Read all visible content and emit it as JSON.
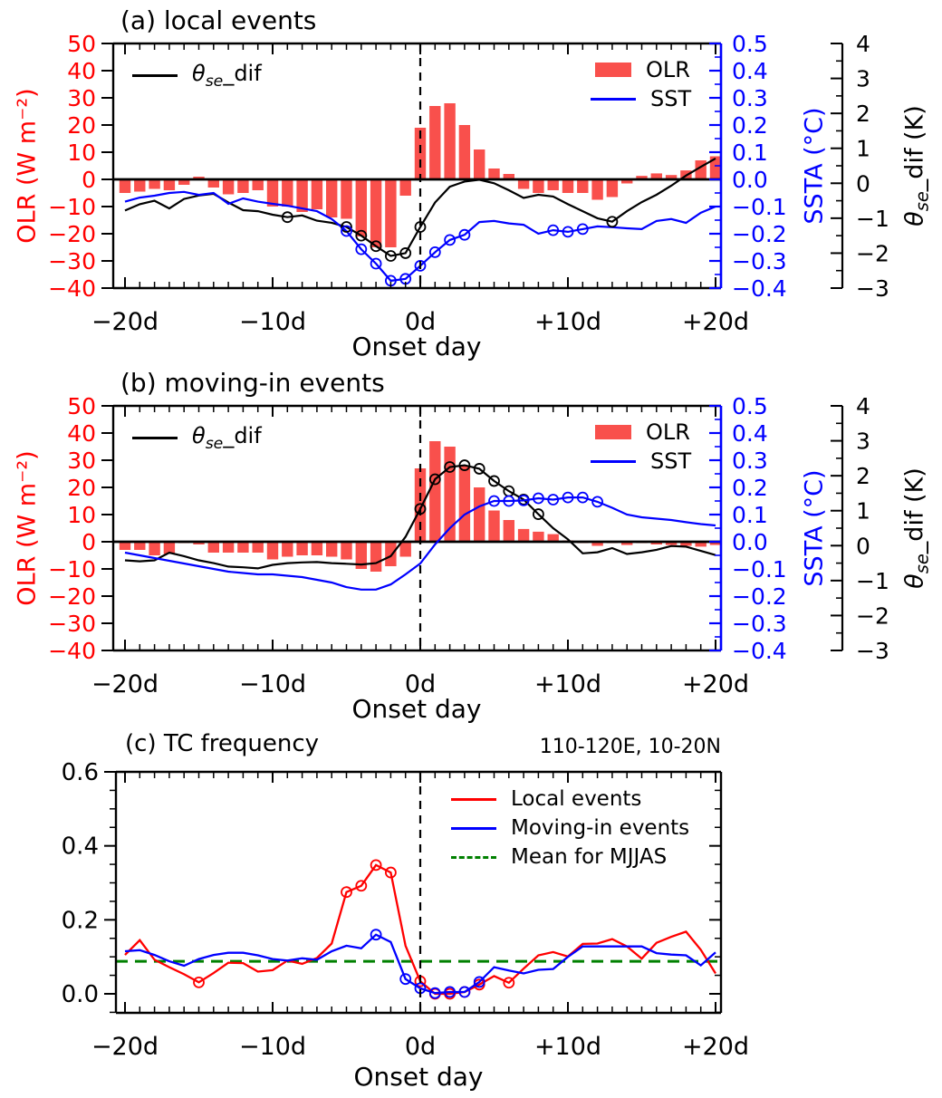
{
  "colors": {
    "red": "#ff0000",
    "blue": "#0000ff",
    "bar": "#f9504c",
    "green": "#008000",
    "black": "#000000"
  },
  "chart_data": [
    {
      "type": "bar+line",
      "panel": "a",
      "title": "(a) local events",
      "xlabel": "Onset day",
      "x_tick_days": [
        -20,
        -10,
        0,
        10,
        20
      ],
      "x_tick_labels": [
        "−20d",
        "−10d",
        "0d",
        "+10d",
        "+20d"
      ],
      "onset_line_day": 0,
      "days": [
        -20,
        -19,
        -18,
        -17,
        -16,
        -15,
        -14,
        -13,
        -12,
        -11,
        -10,
        -9,
        -8,
        -7,
        -6,
        -5,
        -4,
        -3,
        -2,
        -1,
        0,
        1,
        2,
        3,
        4,
        5,
        6,
        7,
        8,
        9,
        10,
        11,
        12,
        13,
        14,
        15,
        16,
        17,
        18,
        19,
        20
      ],
      "axes": {
        "olr": {
          "label": "OLR (W m⁻²)",
          "range": [
            -40,
            50
          ],
          "tick_values": [
            50,
            40,
            30,
            20,
            10,
            0,
            -10,
            -20,
            -30,
            -40
          ],
          "tick_labels": [
            "50",
            "40",
            "30",
            "20",
            "10",
            "0",
            "−10",
            "−20",
            "−30",
            "−40"
          ],
          "color": "#ff0000"
        },
        "ssta": {
          "label": "SSTA (°C)",
          "range": [
            -0.4,
            0.5
          ],
          "tick_values": [
            0.5,
            0.4,
            0.3,
            0.2,
            0.1,
            0.0,
            -0.1,
            -0.2,
            -0.3,
            -0.4
          ],
          "tick_labels": [
            "0.5",
            "0.4",
            "0.3",
            "0.2",
            "0.1",
            "0.0",
            "−0.1",
            "−0.2",
            "−0.3",
            "−0.4"
          ],
          "color": "#0000ff"
        },
        "theta": {
          "label_theta": "θ",
          "label_sub": "se",
          "label_rest": "_dif (K)",
          "range": [
            -3,
            4
          ],
          "tick_values": [
            4,
            3,
            2,
            1,
            0,
            -1,
            -2,
            -3
          ],
          "tick_labels": [
            "4",
            "3",
            "2",
            "1",
            "0",
            "−1",
            "−2",
            "−3"
          ],
          "color": "#000000"
        }
      },
      "legend_theta": {
        "theta": "θ",
        "sub": "se",
        "rest": "_dif"
      },
      "legend_series": [
        {
          "label": "OLR"
        },
        {
          "label": "SST"
        }
      ],
      "series": {
        "olr_bars": [
          -5,
          -4.5,
          -3.5,
          -4,
          -2,
          1,
          -3,
          -5.5,
          -5,
          -4,
          -10,
          -10,
          -12,
          -11,
          -14,
          -14.5,
          -21,
          -25,
          -25,
          -6,
          19,
          27,
          28,
          20,
          11,
          4,
          2,
          -3.5,
          -5,
          -4,
          -5,
          -5,
          -7.5,
          -6.5,
          -1.5,
          1.3,
          2.2,
          1.6,
          3.3,
          7,
          8.5
        ],
        "theta_dif": [
          -0.78,
          -0.6,
          -0.5,
          -0.72,
          -0.45,
          -0.35,
          -0.3,
          -0.55,
          -0.77,
          -0.8,
          -0.9,
          -0.97,
          -0.92,
          -1.07,
          -1.13,
          -1.25,
          -1.5,
          -1.8,
          -2.08,
          -2.0,
          -1.25,
          -0.55,
          -0.1,
          0.05,
          0.1,
          0.0,
          -0.2,
          -0.42,
          -0.33,
          -0.38,
          -0.6,
          -0.8,
          -1.0,
          -1.1,
          -0.8,
          -0.54,
          -0.33,
          -0.07,
          0.22,
          0.47,
          0.71
        ],
        "theta_markers": [
          -9,
          -5,
          -4,
          -3,
          -2,
          -1,
          0,
          13
        ],
        "sst": [
          -0.082,
          -0.067,
          -0.06,
          -0.05,
          -0.046,
          -0.057,
          -0.05,
          -0.09,
          -0.07,
          -0.082,
          -0.09,
          -0.097,
          -0.107,
          -0.117,
          -0.146,
          -0.19,
          -0.257,
          -0.31,
          -0.373,
          -0.366,
          -0.318,
          -0.268,
          -0.223,
          -0.204,
          -0.157,
          -0.153,
          -0.162,
          -0.167,
          -0.2,
          -0.187,
          -0.193,
          -0.183,
          -0.173,
          -0.176,
          -0.18,
          -0.183,
          -0.153,
          -0.146,
          -0.16,
          -0.123,
          -0.1
        ],
        "sst_markers": [
          -5,
          -4,
          -3,
          -2,
          -1,
          0,
          1,
          2,
          3,
          9,
          10,
          11
        ]
      }
    },
    {
      "type": "bar+line",
      "panel": "b",
      "title": "(b) moving-in events",
      "xlabel": "Onset day",
      "x_tick_days": [
        -20,
        -10,
        0,
        10,
        20
      ],
      "x_tick_labels": [
        "−20d",
        "−10d",
        "0d",
        "+10d",
        "+20d"
      ],
      "onset_line_day": 0,
      "days": [
        -20,
        -19,
        -18,
        -17,
        -16,
        -15,
        -14,
        -13,
        -12,
        -11,
        -10,
        -9,
        -8,
        -7,
        -6,
        -5,
        -4,
        -3,
        -2,
        -1,
        0,
        1,
        2,
        3,
        4,
        5,
        6,
        7,
        8,
        9,
        10,
        11,
        12,
        13,
        14,
        15,
        16,
        17,
        18,
        19,
        20
      ],
      "axes": {
        "olr": {
          "label": "OLR (W m⁻²)",
          "range": [
            -40,
            50
          ],
          "tick_values": [
            50,
            40,
            30,
            20,
            10,
            0,
            -10,
            -20,
            -30,
            -40
          ],
          "tick_labels": [
            "50",
            "40",
            "30",
            "20",
            "10",
            "0",
            "−10",
            "−20",
            "−30",
            "−40"
          ],
          "color": "#ff0000"
        },
        "ssta": {
          "label": "SSTA (°C)",
          "range": [
            -0.4,
            0.5
          ],
          "tick_values": [
            0.5,
            0.4,
            0.3,
            0.2,
            0.1,
            0.0,
            -0.1,
            -0.2,
            -0.3,
            -0.4
          ],
          "tick_labels": [
            "0.5",
            "0.4",
            "0.3",
            "0.2",
            "0.1",
            "0.0",
            "−0.1",
            "−0.2",
            "−0.3",
            "−0.4"
          ],
          "color": "#0000ff"
        },
        "theta": {
          "label_theta": "θ",
          "label_sub": "se",
          "label_rest": "_dif (K)",
          "range": [
            -3,
            4
          ],
          "tick_values": [
            4,
            3,
            2,
            1,
            0,
            -1,
            -2,
            -3
          ],
          "tick_labels": [
            "4",
            "3",
            "2",
            "1",
            "0",
            "−1",
            "−2",
            "−3"
          ],
          "color": "#000000"
        }
      },
      "legend_theta": {
        "theta": "θ",
        "sub": "se",
        "rest": "_dif"
      },
      "legend_series": [
        {
          "label": "OLR"
        },
        {
          "label": "SST"
        }
      ],
      "series": {
        "olr_bars": [
          -3,
          -3,
          -5,
          -4.5,
          -0.5,
          -1,
          -4,
          -4,
          -4,
          -4,
          -6.5,
          -5.5,
          -5,
          -5,
          -5.5,
          -6.5,
          -10,
          -11,
          -9,
          -5.5,
          27,
          37,
          35,
          28,
          20,
          11.5,
          8,
          4.7,
          3.7,
          2.8,
          0.5,
          -0.5,
          -1.5,
          -0.5,
          -1.2,
          -0.5,
          -1,
          -1.2,
          -1.5,
          -1.8,
          -1.2
        ],
        "theta_dif": [
          -0.42,
          -0.45,
          -0.42,
          -0.2,
          -0.3,
          -0.42,
          -0.5,
          -0.6,
          -0.62,
          -0.65,
          -0.55,
          -0.5,
          -0.48,
          -0.47,
          -0.5,
          -0.52,
          -0.54,
          -0.5,
          -0.3,
          0.25,
          1.05,
          1.9,
          2.25,
          2.3,
          2.2,
          1.85,
          1.56,
          1.32,
          0.9,
          0.5,
          0.18,
          -0.22,
          -0.19,
          -0.07,
          -0.24,
          -0.19,
          -0.12,
          -0.01,
          -0.03,
          -0.15,
          -0.27
        ],
        "theta_markers": [
          0,
          1,
          2,
          3,
          4,
          5,
          6,
          7,
          8
        ],
        "sst": [
          -0.04,
          -0.05,
          -0.06,
          -0.07,
          -0.08,
          -0.09,
          -0.1,
          -0.11,
          -0.115,
          -0.12,
          -0.12,
          -0.125,
          -0.13,
          -0.14,
          -0.15,
          -0.167,
          -0.176,
          -0.176,
          -0.157,
          -0.12,
          -0.08,
          -0.01,
          0.05,
          0.1,
          0.13,
          0.15,
          0.15,
          0.152,
          0.16,
          0.155,
          0.163,
          0.163,
          0.147,
          0.125,
          0.1,
          0.09,
          0.085,
          0.08,
          0.072,
          0.065,
          0.06
        ],
        "sst_markers": [
          5,
          6,
          7,
          8,
          9,
          10,
          11,
          12
        ]
      }
    },
    {
      "type": "line",
      "panel": "c",
      "title": "(c) TC frequency",
      "subtitle": "110-120E, 10-20N",
      "xlabel": "Onset day",
      "x_tick_days": [
        -20,
        -10,
        0,
        10,
        20
      ],
      "x_tick_labels": [
        "−20d",
        "−10d",
        "0d",
        "+10d",
        "+20d"
      ],
      "onset_line_day": 0,
      "ylim": [
        -0.05,
        0.6
      ],
      "y_tick_values": [
        0.6,
        0.4,
        0.2,
        0.0
      ],
      "y_tick_labels": [
        "0.6",
        "0.4",
        "0.2",
        "0.0"
      ],
      "days": [
        -20,
        -19,
        -18,
        -17,
        -16,
        -15,
        -14,
        -13,
        -12,
        -11,
        -10,
        -9,
        -8,
        -7,
        -6,
        -5,
        -4,
        -3,
        -2,
        -1,
        0,
        1,
        2,
        3,
        4,
        5,
        6,
        7,
        8,
        9,
        10,
        11,
        12,
        13,
        14,
        15,
        16,
        17,
        18,
        19,
        20
      ],
      "series": [
        {
          "name": "Local events",
          "color": "#ff0000",
          "values": [
            0.105,
            0.145,
            0.092,
            0.072,
            0.053,
            0.031,
            0.056,
            0.084,
            0.083,
            0.06,
            0.064,
            0.09,
            0.081,
            0.097,
            0.136,
            0.275,
            0.292,
            0.348,
            0.328,
            0.13,
            0.034,
            0.0,
            0.0,
            0.005,
            0.025,
            0.048,
            0.03,
            0.068,
            0.104,
            0.113,
            0.101,
            0.135,
            0.136,
            0.148,
            0.128,
            0.095,
            0.138,
            0.154,
            0.168,
            0.119,
            0.055
          ],
          "marker_days": [
            -15,
            -5,
            -4,
            -3,
            -2,
            0,
            1,
            2,
            3,
            4,
            6
          ]
        },
        {
          "name": "Moving-in events",
          "color": "#0000ff",
          "values": [
            0.115,
            0.118,
            0.105,
            0.088,
            0.076,
            0.094,
            0.105,
            0.111,
            0.111,
            0.104,
            0.094,
            0.09,
            0.096,
            0.092,
            0.115,
            0.13,
            0.123,
            0.16,
            0.14,
            0.04,
            0.015,
            0.002,
            0.005,
            0.005,
            0.032,
            0.072,
            0.063,
            0.055,
            0.065,
            0.067,
            0.1,
            0.128,
            0.128,
            0.128,
            0.128,
            0.128,
            0.11,
            0.106,
            0.104,
            0.077,
            0.112
          ],
          "marker_days": [
            -3,
            -1,
            0,
            1,
            2,
            3,
            4
          ]
        },
        {
          "name": "Mean for MJJAS",
          "color": "#008000",
          "dashed": true,
          "value": 0.088
        }
      ]
    }
  ]
}
